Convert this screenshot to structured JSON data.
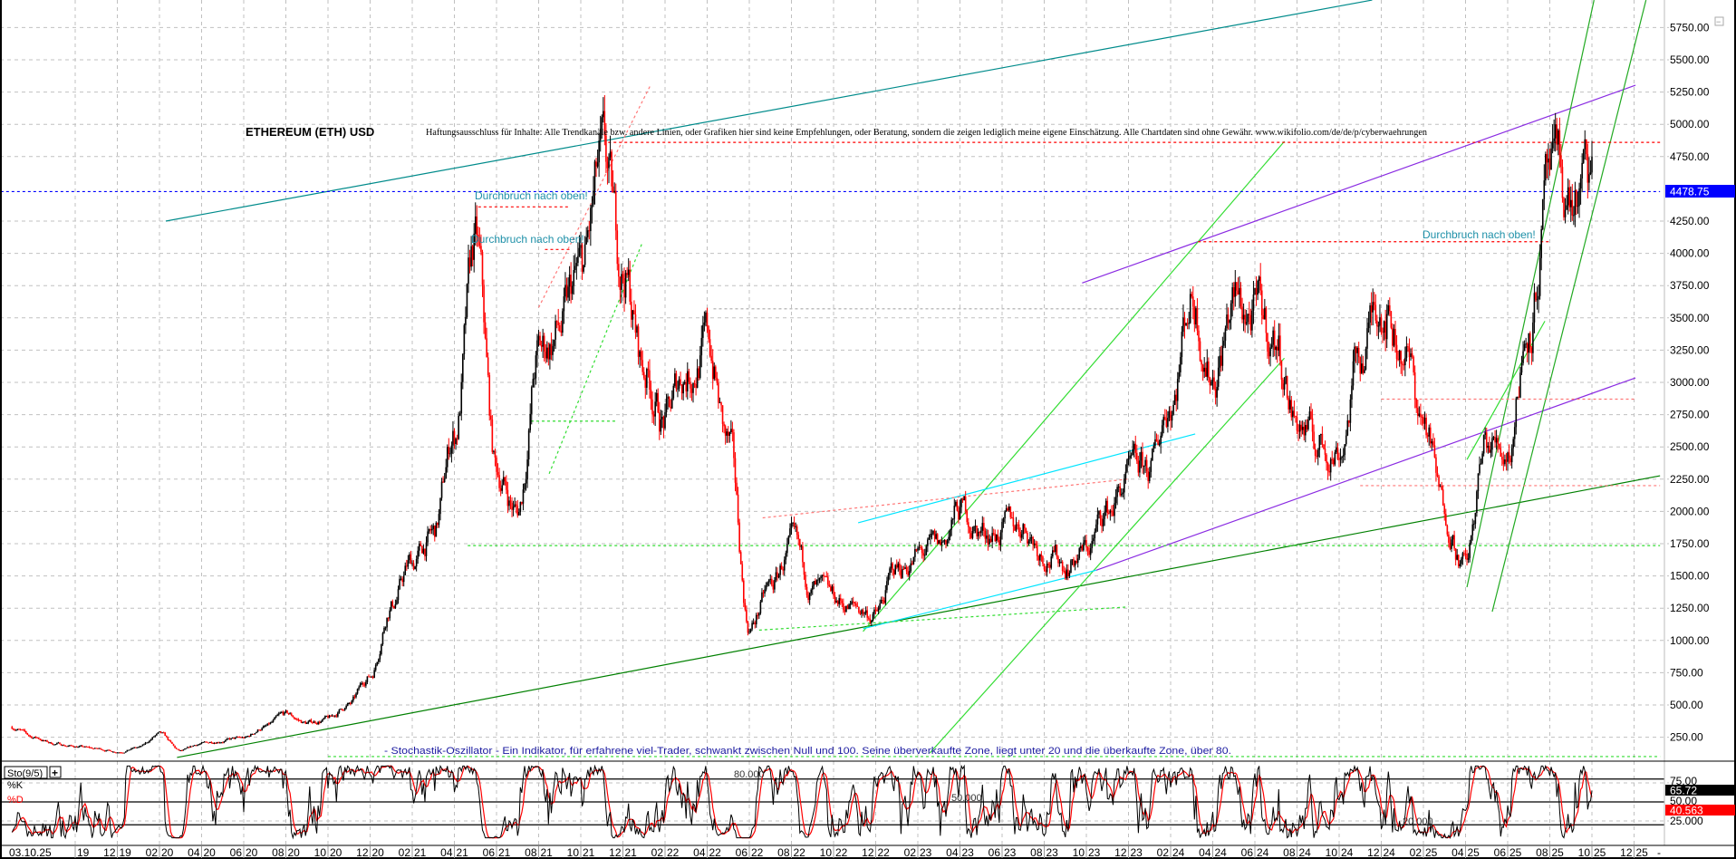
{
  "chart_data": [
    {
      "type": "candlestick",
      "title": "ETHEREUM (ETH) USD",
      "disclaimer": "Haftungsausschluss für Inhalte: Alle Trendkanäle bzw. andere Linien, oder Grafiken hier sind keine Empfehlungen, oder Beratung, sondern die zeigen lediglich meine eigene Einschätzung. Alle Chartdaten sind ohne Gewähr.  www.wikifolio.com/de/de/p/cyberwaehrungen",
      "ylim": [
        100,
        5900
      ],
      "y_ticks": [
        "250.00",
        "500.00",
        "750.00",
        "1000.00",
        "1250.00",
        "1500.00",
        "1750.00",
        "2000.00",
        "2250.00",
        "2500.00",
        "2750.00",
        "3000.00",
        "3250.00",
        "3500.00",
        "3750.00",
        "4000.00",
        "4250.00",
        "4750.00",
        "5000.00",
        "5250.00",
        "5500.00",
        "5750.00"
      ],
      "grid": true,
      "last_price": "4478.75",
      "last_price_value": 4478.75,
      "colors": {
        "up": "#000000",
        "down": "#ff0000",
        "last_price": "#0000ff"
      },
      "monthly_closes": {
        "start": "2019-07",
        "values": [
          330,
          250,
          200,
          180,
          160,
          140,
          170,
          270,
          140,
          200,
          230,
          240,
          330,
          420,
          360,
          390,
          500,
          730,
          1300,
          1600,
          1800,
          2600,
          4000,
          2300,
          2000,
          3200,
          3400,
          3800,
          4600,
          3900,
          3100,
          2700,
          3100,
          3300,
          2500,
          1100,
          1400,
          1700,
          1400,
          1300,
          1250,
          1200,
          1550,
          1650,
          1700,
          2000,
          1850,
          1850,
          1900,
          1700,
          1600,
          1700,
          2000,
          2250,
          2300,
          2900,
          3700,
          3100,
          3600,
          3500,
          3300,
          2700,
          2500,
          2500,
          3200,
          3700,
          3300,
          2700,
          2000,
          1600,
          2500,
          2500,
          3500,
          4500,
          4400,
          4478.75
        ]
      },
      "trendlines": [
        {
          "from": [
            "2020-02-10",
            4250
          ],
          "to": [
            "2024-11-18",
            5963
          ],
          "color": "#008b8b",
          "style": "solid"
        },
        {
          "from": [
            "2020-02-26",
            93
          ],
          "to": [
            "2026-01-08",
            2276
          ],
          "color": "#008000",
          "style": "solid"
        },
        {
          "from": [
            "2023-09-25",
            3770
          ],
          "to": [
            "2025-12-03",
            5303
          ],
          "color": "#8a2be2",
          "style": "solid"
        },
        {
          "from": [
            "2023-10-15",
            1544
          ],
          "to": [
            "2025-12-03",
            3035
          ],
          "color": "#8a2be2",
          "style": "solid"
        },
        {
          "from": [
            "2022-11-13",
            1070
          ],
          "to": [
            "2024-07-13",
            4868
          ],
          "color": "#33dd33",
          "style": "solid"
        },
        {
          "from": [
            "2023-02-18",
            127
          ],
          "to": [
            "2024-07-13",
            3188
          ],
          "color": "#33dd33",
          "style": "solid"
        },
        {
          "from": [
            "2025-04-03",
            1413
          ],
          "to": [
            "2025-10-04",
            5963
          ],
          "color": "#22aa22",
          "style": "solid"
        },
        {
          "from": [
            "2025-05-09",
            1223
          ],
          "to": [
            "2025-12-18",
            5963
          ],
          "color": "#22aa22",
          "style": "solid"
        },
        {
          "from": [
            "2025-04-03",
            2402
          ],
          "to": [
            "2025-07-24",
            3475
          ],
          "color": "#33dd33",
          "style": "solid"
        },
        {
          "from": [
            "2022-11-06",
            1912
          ],
          "to": [
            "2024-03-06",
            2600
          ],
          "color": "#00e5ff",
          "style": "solid"
        },
        {
          "from": [
            "2022-11-13",
            1091
          ],
          "to": [
            "2023-10-15",
            1544
          ],
          "color": "#00e5ff",
          "style": "solid"
        },
        {
          "from": [
            "2021-08-16",
            2292
          ],
          "to": [
            "2021-12-28",
            4074
          ],
          "color": "#33dd33",
          "style": "dashed"
        },
        {
          "from": [
            "2021-04-20",
            1735
          ],
          "to": [
            "2026-01-08",
            1735
          ],
          "color": "#33dd33",
          "style": "dashed"
        },
        {
          "from": [
            "2020-10-01",
            100
          ],
          "to": [
            "2026-01-08",
            100
          ],
          "color": "#33dd33",
          "style": "dashed"
        },
        {
          "from": [
            "2021-07-20",
            2700
          ],
          "to": [
            "2021-11-20",
            2700
          ],
          "color": "#33dd33",
          "style": "dashed"
        },
        {
          "from": [
            "2022-06-15",
            1080
          ],
          "to": [
            "2023-12-01",
            1260
          ],
          "color": "#33dd33",
          "style": "dashed"
        },
        {
          "from": [
            "2021-11-10",
            4860
          ],
          "to": [
            "2026-01-08",
            4860
          ],
          "color": "#ff0000",
          "style": "dashed"
        },
        {
          "from": [
            "2024-03-10",
            4090
          ],
          "to": [
            "2025-08-01",
            4090
          ],
          "color": "#ff0000",
          "style": "dashed"
        },
        {
          "from": [
            "2021-05-05",
            4360
          ],
          "to": [
            "2021-09-15",
            4360
          ],
          "color": "#ff0000",
          "style": "dashed"
        },
        {
          "from": [
            "2021-08-10",
            4030
          ],
          "to": [
            "2021-09-15",
            4030
          ],
          "color": "#ff0000",
          "style": "dashed"
        },
        {
          "from": [
            "2021-08-01",
            3580
          ],
          "to": [
            "2022-01-10",
            5300
          ],
          "color": "#ff7777",
          "style": "dashed"
        },
        {
          "from": [
            "2022-06-20",
            1950
          ],
          "to": [
            "2023-11-30",
            2250
          ],
          "color": "#ff7777",
          "style": "dashed"
        },
        {
          "from": [
            "2022-04-10",
            3570
          ],
          "to": [
            "2024-08-01",
            3570
          ],
          "color": "#aaaaaa",
          "style": "dashed"
        },
        {
          "from": [
            "2024-12-01",
            2870
          ],
          "to": [
            "2025-12-01",
            2870
          ],
          "color": "#ff7777",
          "style": "dashed"
        },
        {
          "from": [
            "2024-11-01",
            2200
          ],
          "to": [
            "2026-01-08",
            2200
          ],
          "color": "#ff7777",
          "style": "dashed"
        },
        {
          "from": [
            "2019-06-15",
            4478.75
          ],
          "to": [
            "2026-01-08",
            4478.75
          ],
          "color": "#0000ff",
          "style": "dashed"
        }
      ],
      "annotations": [
        {
          "text": "Durchbruch nach oben!",
          "at": [
            "2021-05-15",
            4420
          ]
        },
        {
          "text": "Durchbruch nach oben!",
          "at": [
            "2021-05-10",
            4050
          ]
        },
        {
          "text": "Durchbruch nach oben!",
          "at": [
            "2024-12-05",
            4140
          ]
        }
      ],
      "note": "- Stochastik-Oszillator - Ein Indikator, für erfahrene viel-Trader, schwankt zwischen Null und 100. Seine überverkaufte Zone, liegt unter 20 und die überkaufte Zone, über 80."
    },
    {
      "type": "line",
      "title": "Sto(9/5)",
      "series": [
        {
          "name": "%K",
          "color": "#000000"
        },
        {
          "name": "%D",
          "color": "#ff0000"
        }
      ],
      "ylim": [
        0,
        100
      ],
      "levels": [
        "80.000",
        "50.000",
        "20.000"
      ],
      "y_ticks": [
        "75.00",
        "50.00",
        "25.000"
      ],
      "k_last": "65.72",
      "d_last": "40.563"
    }
  ],
  "x_axis": {
    "first_label": "03.10.25",
    "labels": [
      [
        "",
        "19"
      ],
      [
        "12",
        "19"
      ],
      [
        "02",
        "20"
      ],
      [
        "04",
        "20"
      ],
      [
        "06",
        "20"
      ],
      [
        "08",
        "20"
      ],
      [
        "10",
        "20"
      ],
      [
        "12",
        "20"
      ],
      [
        "02",
        "21"
      ],
      [
        "04",
        "21"
      ],
      [
        "06",
        "21"
      ],
      [
        "08",
        "21"
      ],
      [
        "10",
        "21"
      ],
      [
        "12",
        "21"
      ],
      [
        "02",
        "22"
      ],
      [
        "04",
        "22"
      ],
      [
        "06",
        "22"
      ],
      [
        "08",
        "22"
      ],
      [
        "10",
        "22"
      ],
      [
        "12",
        "22"
      ],
      [
        "02",
        "23"
      ],
      [
        "04",
        "23"
      ],
      [
        "06",
        "23"
      ],
      [
        "08",
        "23"
      ],
      [
        "10",
        "23"
      ],
      [
        "12",
        "23"
      ],
      [
        "02",
        "24"
      ],
      [
        "04",
        "24"
      ],
      [
        "06",
        "24"
      ],
      [
        "08",
        "24"
      ],
      [
        "10",
        "24"
      ],
      [
        "12",
        "24"
      ],
      [
        "02",
        "25"
      ],
      [
        "04",
        "25"
      ],
      [
        "06",
        "25"
      ],
      [
        "08",
        "25"
      ],
      [
        "10",
        "25"
      ],
      [
        "12",
        "25"
      ]
    ],
    "end_marker": "-"
  },
  "controls": {
    "sto_label": "Sto(9/5)",
    "add_symbol": "+",
    "k_label": "%K",
    "d_label": "%D",
    "collapse_symbol": "−"
  }
}
